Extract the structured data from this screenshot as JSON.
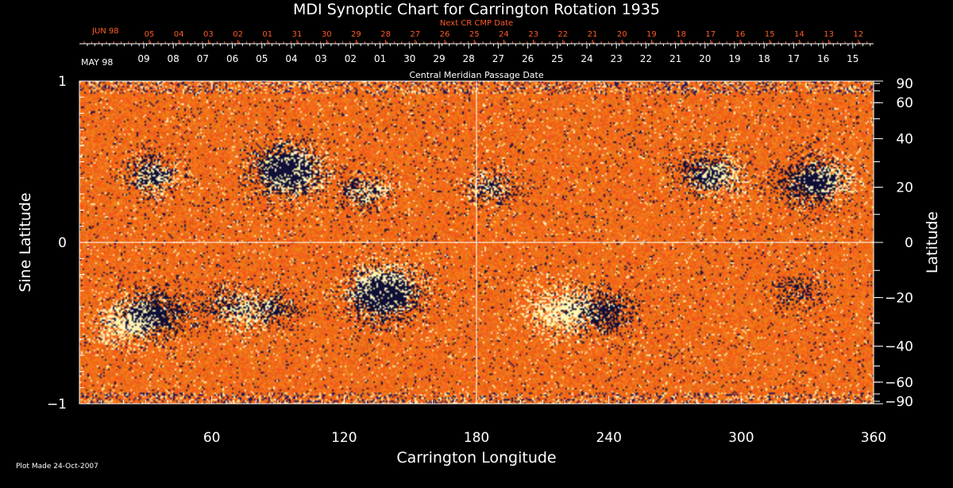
{
  "chart_data": {
    "type": "heatmap",
    "title": "MDI Synoptic Chart for Carrington Rotation 1935",
    "xlabel": "Carrington Longitude",
    "ylabel_left": "Sine Latitude",
    "ylabel_right": "Latitude",
    "xlim": [
      0,
      360
    ],
    "ylim_sine": [
      -1,
      1
    ],
    "x_ticks": [
      60,
      120,
      180,
      240,
      300,
      360
    ],
    "y_ticks_left": [
      1,
      0,
      -1
    ],
    "y_ticks_left_labels": [
      "1",
      "0",
      "−1"
    ],
    "y_ticks_right": [
      90,
      60,
      40,
      20,
      0,
      -20,
      -40,
      -60,
      -90
    ],
    "y_ticks_right_labels": [
      "90",
      "60",
      "40",
      "20",
      "0",
      "−20",
      "−40",
      "−60",
      "−90"
    ],
    "center_lines": {
      "longitude": 180,
      "sine_latitude": 0
    },
    "cmp_axis": {
      "label": "Central Meridian Passage Date",
      "first_month": "MAY 98",
      "dates": [
        "09",
        "08",
        "07",
        "06",
        "05",
        "04",
        "03",
        "02",
        "01",
        "30",
        "29",
        "28",
        "27",
        "26",
        "25",
        "24",
        "23",
        "22",
        "21",
        "20",
        "19",
        "18",
        "17",
        "16",
        "15"
      ]
    },
    "next_cr_axis": {
      "label": "Next CR CMP Date",
      "first_month": "JUN 98",
      "dates": [
        "05",
        "04",
        "03",
        "02",
        "01",
        "31",
        "30",
        "29",
        "28",
        "27",
        "26",
        "25",
        "24",
        "23",
        "22",
        "21",
        "20",
        "19",
        "18",
        "17",
        "16",
        "15",
        "14",
        "13",
        "12"
      ]
    },
    "features": [
      {
        "type": "negative",
        "lon": 92,
        "lat": 27,
        "strength": 1.0
      },
      {
        "type": "positive",
        "lon": 96,
        "lat": 26,
        "strength": 0.8
      },
      {
        "type": "negative",
        "lon": 138,
        "lat": -19,
        "strength": 1.0
      },
      {
        "type": "positive",
        "lon": 137,
        "lat": -16,
        "strength": 0.9
      },
      {
        "type": "negative",
        "lon": 32,
        "lat": 25,
        "strength": 0.6
      },
      {
        "type": "positive",
        "lon": 35,
        "lat": 24,
        "strength": 0.5
      },
      {
        "type": "negative",
        "lon": 330,
        "lat": 22,
        "strength": 0.9
      },
      {
        "type": "positive",
        "lon": 340,
        "lat": 23,
        "strength": 0.6
      },
      {
        "type": "negative",
        "lon": 284,
        "lat": 26,
        "strength": 0.7
      },
      {
        "type": "positive",
        "lon": 290,
        "lat": 24,
        "strength": 0.6
      },
      {
        "type": "positive",
        "lon": 218,
        "lat": -25,
        "strength": 0.9
      },
      {
        "type": "negative",
        "lon": 238,
        "lat": -25,
        "strength": 0.8
      },
      {
        "type": "positive",
        "lon": 20,
        "lat": -30,
        "strength": 0.8
      },
      {
        "type": "negative",
        "lon": 35,
        "lat": -25,
        "strength": 0.9
      },
      {
        "type": "positive",
        "lon": 75,
        "lat": -25,
        "strength": 0.6
      },
      {
        "type": "negative",
        "lon": 88,
        "lat": -24,
        "strength": 0.6
      },
      {
        "type": "negative",
        "lon": 65,
        "lat": -22,
        "strength": 0.5
      },
      {
        "type": "negative",
        "lon": 128,
        "lat": 18,
        "strength": 0.5
      },
      {
        "type": "positive",
        "lon": 132,
        "lat": 19,
        "strength": 0.4
      },
      {
        "type": "negative",
        "lon": 188,
        "lat": 20,
        "strength": 0.5
      },
      {
        "type": "positive",
        "lon": 184,
        "lat": 20,
        "strength": 0.4
      },
      {
        "type": "negative",
        "lon": 325,
        "lat": -17,
        "strength": 0.5
      }
    ]
  },
  "footer": {
    "plot_made": "Plot Made 24-Oct-2007"
  },
  "colors": {
    "background": "#000000",
    "axes": "#ffffff",
    "next_cr_text": "#ff5a28",
    "field_base": "#e8581c",
    "positive": "#fff2b0",
    "negative": "#1a0a40"
  }
}
